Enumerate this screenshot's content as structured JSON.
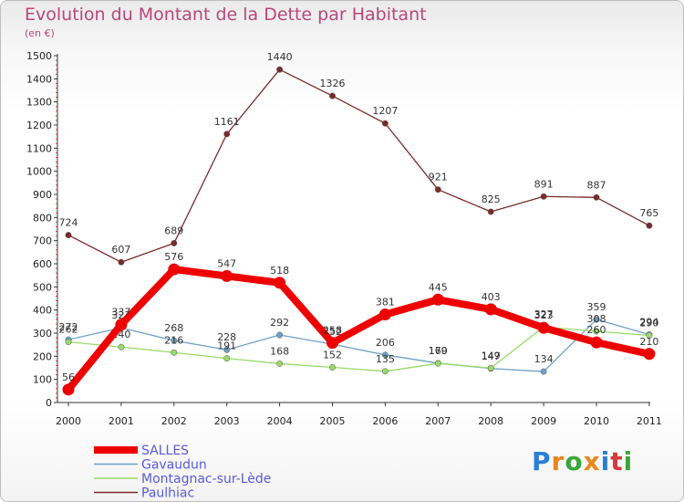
{
  "title": "Evolution du Montant de la Dette par Habitant",
  "subtitle": "(en €)",
  "logo": {
    "text": "Proxiti",
    "letters": [
      "P",
      "r",
      "o",
      "x",
      "i",
      "t",
      "i"
    ],
    "colors": [
      "#2a7fd4",
      "#e8871e",
      "#3aa53a",
      "#e8871e",
      "#2a7fd4",
      "#d63a3a",
      "#3aa53a"
    ]
  },
  "chart_data": {
    "type": "line",
    "title": "Evolution du Montant de la Dette par Habitant",
    "subtitle": "(en €)",
    "x": [
      "2000",
      "2001",
      "2002",
      "2003",
      "2004",
      "2005",
      "2006",
      "2007",
      "2008",
      "2009",
      "2010",
      "2011"
    ],
    "ylim": [
      0,
      1500
    ],
    "yticks": [
      0,
      100,
      200,
      300,
      400,
      500,
      600,
      700,
      800,
      900,
      1000,
      1100,
      1200,
      1300,
      1400,
      1500
    ],
    "grid": false,
    "legend_position": "bottom-left",
    "series": [
      {
        "name": "Paulhiac",
        "color": "#7a2a2a",
        "values": [
          724,
          607,
          689,
          1161,
          1440,
          1326,
          1207,
          921,
          825,
          891,
          887,
          765
        ]
      },
      {
        "name": "Gavaudun",
        "color": "#6fa0c8",
        "values": [
          272,
          323,
          268,
          228,
          292,
          252,
          206,
          170,
          147,
          134,
          359,
          294
        ]
      },
      {
        "name": "Montagnac-sur-Lède",
        "color": "#99d96a",
        "values": [
          262,
          240,
          216,
          191,
          168,
          152,
          135,
          169,
          149,
          327,
          308,
          290
        ]
      },
      {
        "name": "SALLES",
        "color": "#ee0000",
        "values": [
          56,
          337,
          576,
          547,
          518,
          258,
          381,
          445,
          403,
          323,
          260,
          210
        ]
      }
    ],
    "legend_order": [
      "SALLES",
      "Gavaudun",
      "Montagnac-sur-Lède",
      "Paulhiac"
    ]
  }
}
